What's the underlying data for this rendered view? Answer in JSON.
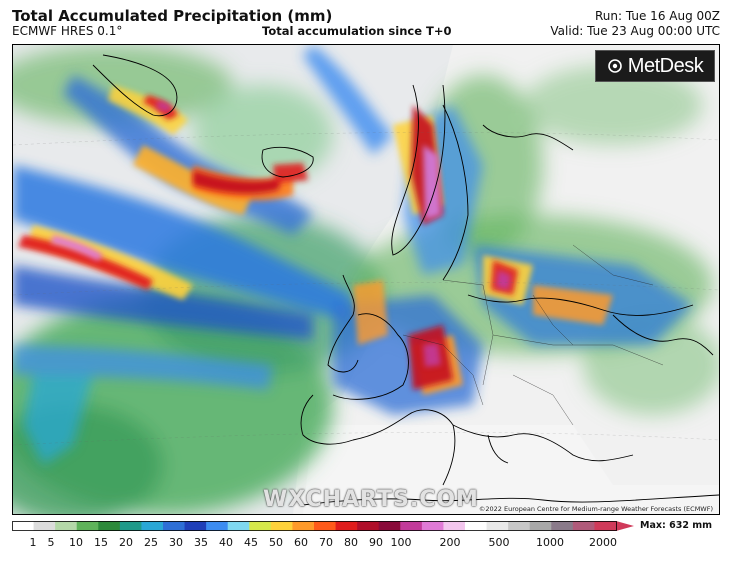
{
  "header": {
    "title": "Total Accumulated Precipitation (mm)",
    "model": "ECMWF HRES 0.1°",
    "subtitle": "Total accumulation since T+0",
    "run": "Run: Tue 16 Aug 00Z",
    "valid": "Valid: Tue 23 Aug 00:00 UTC"
  },
  "logo": {
    "brand": "MetDesk",
    "icon": "metdesk-logo-icon"
  },
  "watermark": "WXCHARTS.COM",
  "copyright": "©2022 European Centre for Medium-range Weather Forecasts (ECMWF)",
  "legend": {
    "max_label": "Max: 632 mm",
    "ticks": [
      "1",
      "5",
      "10",
      "15",
      "20",
      "25",
      "30",
      "35",
      "40",
      "45",
      "50",
      "60",
      "70",
      "80",
      "90",
      "100",
      "200",
      "500",
      "1000",
      "2000"
    ],
    "colors": [
      "#ffffff",
      "#dcdcdc",
      "#b4d8a8",
      "#5fb35a",
      "#2d8a3a",
      "#1f9a8a",
      "#2aa7d6",
      "#2e6fd6",
      "#1f3fb8",
      "#3c8cf0",
      "#7fd8f0",
      "#d6e84a",
      "#ffd23a",
      "#ff9a2a",
      "#ff5a1a",
      "#e01c1c",
      "#b00e2a",
      "#8a0a3a",
      "#c23a9a",
      "#e07ad6",
      "#f3c6ee",
      "#ffffff",
      "#e8e8e8",
      "#c7c7c7",
      "#a8a8a8",
      "#8a7a8a",
      "#b05a7a",
      "#d03a5a"
    ]
  }
}
